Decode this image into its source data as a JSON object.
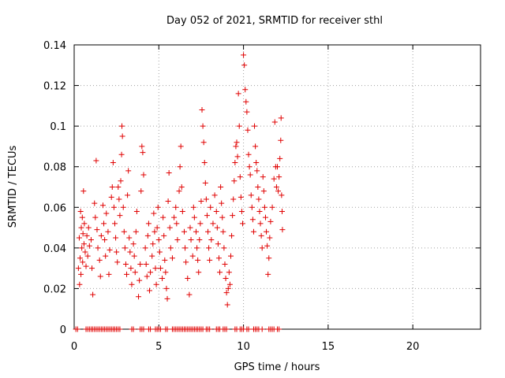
{
  "chart_data": {
    "type": "scatter",
    "title": "Day 052 of 2021, SRMTID for receiver sthl",
    "xlabel": "GPS time / hours",
    "ylabel": "SRMTID / TECUs",
    "xlim": [
      0,
      24
    ],
    "ylim": [
      0,
      0.14
    ],
    "x_ticks": [
      0,
      5,
      10,
      15,
      20
    ],
    "x_tick_labels": [
      "0",
      "5",
      "10",
      "15",
      "20"
    ],
    "y_ticks": [
      0,
      0.02,
      0.04,
      0.06,
      0.08,
      0.1,
      0.12,
      0.14
    ],
    "y_tick_labels": [
      "0",
      "0.02",
      "0.04",
      "0.06",
      "0.08",
      "0.1",
      "0.12",
      "0.14"
    ],
    "grid": true,
    "marker": "plus",
    "color": "#e00000",
    "series": [
      {
        "points": [
          [
            0.1,
            0.0
          ],
          [
            0.2,
            0.0
          ],
          [
            0.7,
            0.0
          ],
          [
            0.8,
            0.0
          ],
          [
            0.9,
            0.0
          ],
          [
            1.0,
            0.0
          ],
          [
            1.1,
            0.0
          ],
          [
            1.2,
            0.0
          ],
          [
            1.3,
            0.0
          ],
          [
            1.4,
            0.0
          ],
          [
            1.5,
            0.0
          ],
          [
            1.6,
            0.0
          ],
          [
            1.7,
            0.0
          ],
          [
            1.8,
            0.0
          ],
          [
            1.9,
            0.0
          ],
          [
            2.0,
            0.0
          ],
          [
            2.1,
            0.0
          ],
          [
            2.2,
            0.0
          ],
          [
            2.3,
            0.0
          ],
          [
            2.4,
            0.0
          ],
          [
            2.5,
            0.0
          ],
          [
            2.6,
            0.0
          ],
          [
            2.7,
            0.0
          ],
          [
            3.4,
            0.0
          ],
          [
            3.5,
            0.0
          ],
          [
            3.9,
            0.0
          ],
          [
            4.0,
            0.0
          ],
          [
            4.1,
            0.0
          ],
          [
            4.4,
            0.0
          ],
          [
            4.5,
            0.0
          ],
          [
            4.8,
            0.0
          ],
          [
            4.9,
            0.0
          ],
          [
            5.0,
            0.0
          ],
          [
            5.1,
            0.0
          ],
          [
            5.4,
            0.0
          ],
          [
            5.5,
            0.0
          ],
          [
            5.8,
            0.0
          ],
          [
            5.9,
            0.0
          ],
          [
            6.0,
            0.0
          ],
          [
            6.1,
            0.0
          ],
          [
            6.2,
            0.0
          ],
          [
            6.3,
            0.0
          ],
          [
            6.4,
            0.0
          ],
          [
            6.5,
            0.0
          ],
          [
            6.6,
            0.0
          ],
          [
            6.7,
            0.0
          ],
          [
            6.8,
            0.0
          ],
          [
            6.9,
            0.0
          ],
          [
            7.0,
            0.0
          ],
          [
            7.1,
            0.0
          ],
          [
            7.2,
            0.0
          ],
          [
            7.3,
            0.0
          ],
          [
            7.4,
            0.0
          ],
          [
            7.5,
            0.0
          ],
          [
            7.6,
            0.0
          ],
          [
            7.8,
            0.0
          ],
          [
            7.9,
            0.0
          ],
          [
            8.0,
            0.0
          ],
          [
            8.4,
            0.0
          ],
          [
            8.5,
            0.0
          ],
          [
            8.6,
            0.0
          ],
          [
            8.8,
            0.0
          ],
          [
            8.9,
            0.0
          ],
          [
            9.0,
            0.0
          ],
          [
            9.5,
            0.0
          ],
          [
            9.6,
            0.0
          ],
          [
            9.8,
            0.0
          ],
          [
            9.9,
            0.0
          ],
          [
            10.0,
            0.0
          ],
          [
            10.2,
            0.0
          ],
          [
            10.3,
            0.0
          ],
          [
            10.6,
            0.0
          ],
          [
            10.7,
            0.0
          ],
          [
            10.8,
            0.0
          ],
          [
            10.9,
            0.0
          ],
          [
            11.1,
            0.0
          ],
          [
            11.5,
            0.0
          ],
          [
            11.6,
            0.0
          ],
          [
            11.7,
            0.0
          ],
          [
            11.8,
            0.0
          ],
          [
            12.0,
            0.0
          ],
          [
            12.1,
            0.0
          ],
          [
            0.25,
            0.03
          ],
          [
            0.3,
            0.045
          ],
          [
            0.32,
            0.022
          ],
          [
            0.35,
            0.035
          ],
          [
            0.38,
            0.058
          ],
          [
            0.4,
            0.027
          ],
          [
            0.42,
            0.05
          ],
          [
            0.45,
            0.04
          ],
          [
            0.48,
            0.055
          ],
          [
            0.5,
            0.033
          ],
          [
            0.52,
            0.047
          ],
          [
            0.55,
            0.068
          ],
          [
            0.58,
            0.042
          ],
          [
            0.6,
            0.052
          ],
          [
            0.65,
            0.038
          ],
          [
            0.7,
            0.031
          ],
          [
            0.75,
            0.046
          ],
          [
            0.8,
            0.036
          ],
          [
            0.85,
            0.05
          ],
          [
            0.9,
            0.041
          ],
          [
            1.0,
            0.044
          ],
          [
            1.05,
            0.03
          ],
          [
            1.1,
            0.017
          ],
          [
            1.2,
            0.062
          ],
          [
            1.25,
            0.055
          ],
          [
            1.3,
            0.083
          ],
          [
            1.35,
            0.049
          ],
          [
            1.4,
            0.04
          ],
          [
            1.5,
            0.034
          ],
          [
            1.55,
            0.026
          ],
          [
            1.6,
            0.046
          ],
          [
            1.7,
            0.061
          ],
          [
            1.75,
            0.052
          ],
          [
            1.8,
            0.044
          ],
          [
            1.85,
            0.036
          ],
          [
            1.9,
            0.057
          ],
          [
            2.0,
            0.048
          ],
          [
            2.05,
            0.027
          ],
          [
            2.1,
            0.039
          ],
          [
            2.2,
            0.065
          ],
          [
            2.25,
            0.07
          ],
          [
            2.3,
            0.082
          ],
          [
            2.35,
            0.06
          ],
          [
            2.4,
            0.052
          ],
          [
            2.45,
            0.045
          ],
          [
            2.5,
            0.038
          ],
          [
            2.55,
            0.033
          ],
          [
            2.6,
            0.07
          ],
          [
            2.65,
            0.064
          ],
          [
            2.7,
            0.056
          ],
          [
            2.75,
            0.073
          ],
          [
            2.8,
            0.086
          ],
          [
            2.82,
            0.1
          ],
          [
            2.85,
            0.095
          ],
          [
            2.9,
            0.06
          ],
          [
            2.95,
            0.048
          ],
          [
            3.0,
            0.04
          ],
          [
            3.05,
            0.032
          ],
          [
            3.1,
            0.027
          ],
          [
            3.15,
            0.066
          ],
          [
            3.2,
            0.078
          ],
          [
            3.25,
            0.045
          ],
          [
            3.3,
            0.038
          ],
          [
            3.35,
            0.03
          ],
          [
            3.4,
            0.022
          ],
          [
            3.5,
            0.042
          ],
          [
            3.55,
            0.036
          ],
          [
            3.6,
            0.028
          ],
          [
            3.65,
            0.048
          ],
          [
            3.7,
            0.058
          ],
          [
            3.8,
            0.016
          ],
          [
            3.85,
            0.024
          ],
          [
            3.9,
            0.032
          ],
          [
            3.95,
            0.068
          ],
          [
            4.0,
            0.09
          ],
          [
            4.05,
            0.087
          ],
          [
            4.1,
            0.076
          ],
          [
            4.2,
            0.04
          ],
          [
            4.25,
            0.032
          ],
          [
            4.3,
            0.026
          ],
          [
            4.35,
            0.046
          ],
          [
            4.4,
            0.052
          ],
          [
            4.45,
            0.019
          ],
          [
            4.5,
            0.028
          ],
          [
            4.6,
            0.036
          ],
          [
            4.65,
            0.042
          ],
          [
            4.7,
            0.057
          ],
          [
            4.75,
            0.048
          ],
          [
            4.8,
            0.03
          ],
          [
            4.85,
            0.022
          ],
          [
            4.9,
            0.05
          ],
          [
            4.95,
            0.06
          ],
          [
            5.0,
            0.044
          ],
          [
            5.05,
            0.038
          ],
          [
            5.1,
            0.03
          ],
          [
            5.2,
            0.025
          ],
          [
            5.25,
            0.055
          ],
          [
            5.3,
            0.046
          ],
          [
            5.35,
            0.034
          ],
          [
            5.4,
            0.028
          ],
          [
            5.45,
            0.02
          ],
          [
            5.5,
            0.015
          ],
          [
            5.55,
            0.063
          ],
          [
            5.6,
            0.077
          ],
          [
            5.65,
            0.05
          ],
          [
            5.7,
            0.04
          ],
          [
            5.8,
            0.035
          ],
          [
            5.9,
            0.055
          ],
          [
            6.0,
            0.06
          ],
          [
            6.05,
            0.052
          ],
          [
            6.1,
            0.044
          ],
          [
            6.2,
            0.068
          ],
          [
            6.25,
            0.08
          ],
          [
            6.3,
            0.09
          ],
          [
            6.35,
            0.07
          ],
          [
            6.4,
            0.058
          ],
          [
            6.5,
            0.048
          ],
          [
            6.55,
            0.04
          ],
          [
            6.6,
            0.033
          ],
          [
            6.7,
            0.025
          ],
          [
            6.8,
            0.017
          ],
          [
            6.85,
            0.05
          ],
          [
            6.9,
            0.044
          ],
          [
            7.0,
            0.036
          ],
          [
            7.05,
            0.06
          ],
          [
            7.1,
            0.055
          ],
          [
            7.2,
            0.048
          ],
          [
            7.25,
            0.04
          ],
          [
            7.3,
            0.034
          ],
          [
            7.35,
            0.028
          ],
          [
            7.4,
            0.044
          ],
          [
            7.45,
            0.052
          ],
          [
            7.5,
            0.063
          ],
          [
            7.55,
            0.108
          ],
          [
            7.6,
            0.1
          ],
          [
            7.65,
            0.092
          ],
          [
            7.7,
            0.082
          ],
          [
            7.75,
            0.072
          ],
          [
            7.8,
            0.064
          ],
          [
            7.85,
            0.056
          ],
          [
            7.9,
            0.048
          ],
          [
            7.95,
            0.04
          ],
          [
            8.0,
            0.034
          ],
          [
            8.05,
            0.06
          ],
          [
            8.1,
            0.044
          ],
          [
            8.2,
            0.052
          ],
          [
            8.3,
            0.066
          ],
          [
            8.4,
            0.058
          ],
          [
            8.45,
            0.05
          ],
          [
            8.5,
            0.042
          ],
          [
            8.55,
            0.035
          ],
          [
            8.6,
            0.028
          ],
          [
            8.65,
            0.07
          ],
          [
            8.7,
            0.062
          ],
          [
            8.75,
            0.055
          ],
          [
            8.8,
            0.048
          ],
          [
            8.85,
            0.04
          ],
          [
            8.9,
            0.032
          ],
          [
            8.95,
            0.025
          ],
          [
            9.0,
            0.018
          ],
          [
            9.05,
            0.012
          ],
          [
            9.1,
            0.02
          ],
          [
            9.15,
            0.028
          ],
          [
            9.2,
            0.022
          ],
          [
            9.25,
            0.036
          ],
          [
            9.3,
            0.046
          ],
          [
            9.35,
            0.056
          ],
          [
            9.4,
            0.064
          ],
          [
            9.45,
            0.073
          ],
          [
            9.5,
            0.082
          ],
          [
            9.55,
            0.09
          ],
          [
            9.6,
            0.092
          ],
          [
            9.65,
            0.085
          ],
          [
            9.7,
            0.116
          ],
          [
            9.75,
            0.1
          ],
          [
            9.8,
            0.075
          ],
          [
            9.85,
            0.065
          ],
          [
            9.9,
            0.058
          ],
          [
            9.95,
            0.052
          ],
          [
            10.0,
            0.135
          ],
          [
            10.05,
            0.13
          ],
          [
            10.1,
            0.118
          ],
          [
            10.15,
            0.112
          ],
          [
            10.2,
            0.107
          ],
          [
            10.25,
            0.098
          ],
          [
            10.3,
            0.086
          ],
          [
            10.35,
            0.08
          ],
          [
            10.4,
            0.076
          ],
          [
            10.45,
            0.066
          ],
          [
            10.5,
            0.06
          ],
          [
            10.55,
            0.054
          ],
          [
            10.6,
            0.048
          ],
          [
            10.65,
            0.1
          ],
          [
            10.7,
            0.09
          ],
          [
            10.75,
            0.082
          ],
          [
            10.8,
            0.078
          ],
          [
            10.85,
            0.07
          ],
          [
            10.9,
            0.064
          ],
          [
            10.95,
            0.058
          ],
          [
            11.0,
            0.052
          ],
          [
            11.05,
            0.046
          ],
          [
            11.1,
            0.04
          ],
          [
            11.15,
            0.075
          ],
          [
            11.2,
            0.068
          ],
          [
            11.25,
            0.06
          ],
          [
            11.3,
            0.055
          ],
          [
            11.35,
            0.048
          ],
          [
            11.4,
            0.041
          ],
          [
            11.45,
            0.027
          ],
          [
            11.5,
            0.035
          ],
          [
            11.55,
            0.045
          ],
          [
            11.6,
            0.053
          ],
          [
            11.7,
            0.06
          ],
          [
            11.8,
            0.074
          ],
          [
            11.85,
            0.102
          ],
          [
            11.9,
            0.08
          ],
          [
            11.95,
            0.07
          ],
          [
            12.0,
            0.08
          ],
          [
            12.05,
            0.068
          ],
          [
            12.1,
            0.075
          ],
          [
            12.15,
            0.084
          ],
          [
            12.2,
            0.093
          ],
          [
            12.22,
            0.104
          ],
          [
            12.25,
            0.066
          ],
          [
            12.28,
            0.058
          ],
          [
            12.3,
            0.049
          ]
        ]
      }
    ]
  }
}
